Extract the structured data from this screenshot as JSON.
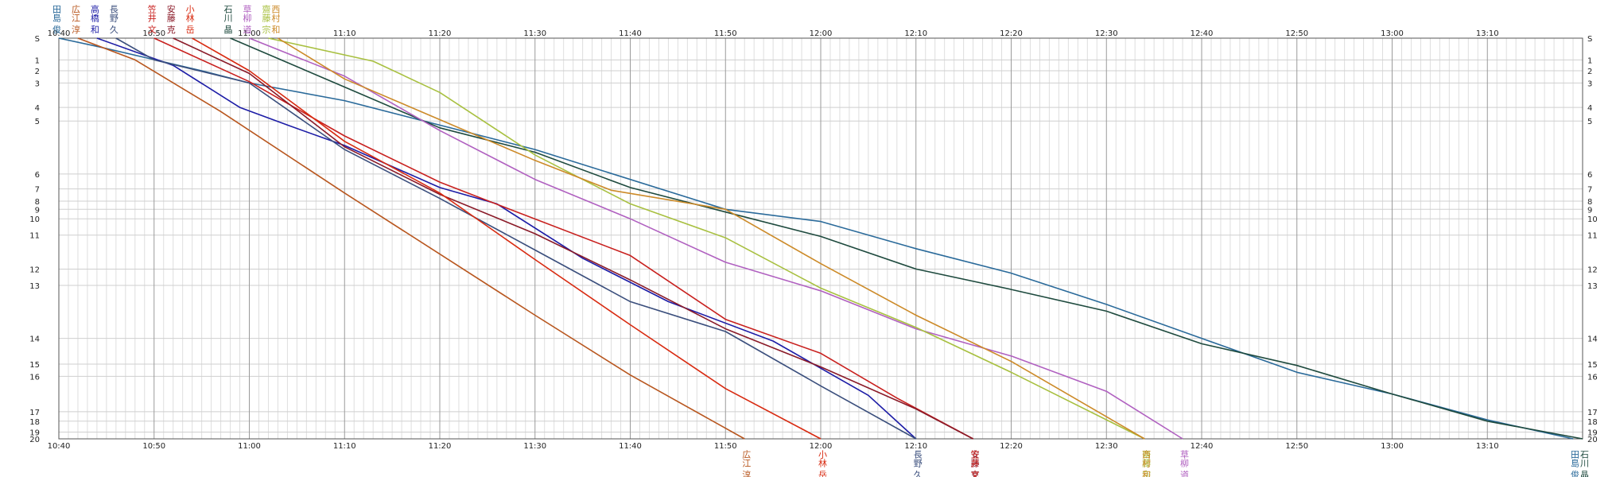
{
  "chart_data": {
    "type": "line",
    "title": "",
    "xlabel": "",
    "ylabel": "",
    "x_ticks": [
      "10:40",
      "10:50",
      "11:00",
      "11:10",
      "11:20",
      "11:30",
      "11:40",
      "11:50",
      "12:00",
      "12:10",
      "12:20",
      "12:30",
      "12:40",
      "12:50",
      "13:00",
      "13:10"
    ],
    "xlim": [
      "10:40",
      "13:20"
    ],
    "y_ticks": [
      "S",
      "1",
      "2",
      "3",
      "4",
      "5",
      "6",
      "7",
      "8",
      "9",
      "10",
      "11",
      "12",
      "13",
      "14",
      "15",
      "16",
      "17",
      "18",
      "19",
      "20"
    ],
    "y_stations": [
      {
        "label": "S",
        "dist": 0
      },
      {
        "label": "1",
        "dist": 1.6
      },
      {
        "label": "2",
        "dist": 2.4
      },
      {
        "label": "3",
        "dist": 3.3
      },
      {
        "label": "4",
        "dist": 5.1
      },
      {
        "label": "5",
        "dist": 6.1
      },
      {
        "label": "6",
        "dist": 10
      },
      {
        "label": "7",
        "dist": 11.1
      },
      {
        "label": "8",
        "dist": 12
      },
      {
        "label": "9",
        "dist": 12.6
      },
      {
        "label": "10",
        "dist": 13.3
      },
      {
        "label": "11",
        "dist": 14.5
      },
      {
        "label": "12",
        "dist": 17
      },
      {
        "label": "13",
        "dist": 18.2
      },
      {
        "label": "14",
        "dist": 22.1
      },
      {
        "label": "15",
        "dist": 24
      },
      {
        "label": "16",
        "dist": 24.9
      },
      {
        "label": "17",
        "dist": 27.5
      },
      {
        "label": "18",
        "dist": 28.2
      },
      {
        "label": "19",
        "dist": 29
      },
      {
        "label": "20",
        "dist": 29.5
      }
    ],
    "grid": true,
    "series": [
      {
        "name": "田島 俊",
        "color": "#2a6a9a",
        "start_time": "10:40",
        "finish_time": "13:19",
        "points": [
          [
            "10:40",
            0
          ],
          [
            "10:44",
            0.6
          ],
          [
            "10:55",
            2.4
          ],
          [
            "11:00",
            3.3
          ],
          [
            "11:10",
            4.6
          ],
          [
            "11:30",
            8.2
          ],
          [
            "11:50",
            12.6
          ],
          [
            "12:00",
            13.5
          ],
          [
            "12:10",
            15.5
          ],
          [
            "12:20",
            17.3
          ],
          [
            "12:30",
            19.6
          ],
          [
            "12:40",
            22.1
          ],
          [
            "12:50",
            24.6
          ],
          [
            "13:00",
            26.2
          ],
          [
            "13:10",
            28.1
          ],
          [
            "13:19",
            29.5
          ]
        ]
      },
      {
        "name": "広江 淳",
        "color": "#b8561e",
        "start_time": "10:42",
        "finish_time": "11:52",
        "points": [
          [
            "10:42",
            0
          ],
          [
            "10:48",
            1.6
          ],
          [
            "10:57",
            5.4
          ],
          [
            "11:10",
            11.4
          ],
          [
            "11:20",
            15.9
          ],
          [
            "11:30",
            20.4
          ],
          [
            "11:40",
            24.8
          ],
          [
            "11:52",
            29.5
          ]
        ]
      },
      {
        "name": "高橋 和",
        "color": "#1c1ca6",
        "start_time": "10:44",
        "finish_time": "12:10",
        "points": [
          [
            "10:44",
            0
          ],
          [
            "10:52",
            2
          ],
          [
            "10:59",
            5.1
          ],
          [
            "11:04",
            6.4
          ],
          [
            "11:10",
            7.9
          ],
          [
            "11:20",
            11
          ],
          [
            "11:26",
            12.2
          ],
          [
            "11:35",
            16.2
          ],
          [
            "11:44",
            19.4
          ],
          [
            "11:55",
            22.3
          ],
          [
            "12:05",
            26.3
          ],
          [
            "12:10",
            29.5
          ]
        ]
      },
      {
        "name": "長野 久",
        "color": "#3a4e7c",
        "start_time": "10:46",
        "finish_time": "12:10",
        "points": [
          [
            "10:46",
            0
          ],
          [
            "10:50",
            1.6
          ],
          [
            "11:00",
            3.3
          ],
          [
            "11:10",
            8.2
          ],
          [
            "11:20",
            11.8
          ],
          [
            "11:30",
            15.6
          ],
          [
            "11:40",
            19.4
          ],
          [
            "11:50",
            21.6
          ],
          [
            "12:00",
            25.6
          ],
          [
            "12:10",
            29.5
          ]
        ]
      },
      {
        "name": "笠井 文",
        "color": "#c8201e",
        "start_time": "10:50",
        "finish_time": "12:16",
        "points": [
          [
            "10:50",
            0
          ],
          [
            "11:00",
            3.2
          ],
          [
            "11:10",
            7.2
          ],
          [
            "11:20",
            10.6
          ],
          [
            "11:27",
            12.5
          ],
          [
            "11:40",
            16
          ],
          [
            "11:50",
            20.7
          ],
          [
            "12:00",
            23.2
          ],
          [
            "12:08",
            26.5
          ],
          [
            "12:16",
            29.5
          ]
        ]
      },
      {
        "name": "安藤 克",
        "color": "#8a1a28",
        "start_time": "10:52",
        "finish_time": "12:16",
        "points": [
          [
            "10:52",
            0
          ],
          [
            "11:00",
            2.6
          ],
          [
            "11:10",
            8
          ],
          [
            "11:20",
            11.5
          ],
          [
            "11:30",
            14.4
          ],
          [
            "11:40",
            17.8
          ],
          [
            "11:50",
            21.4
          ],
          [
            "12:00",
            24.2
          ],
          [
            "12:10",
            27.3
          ],
          [
            "12:16",
            29.5
          ]
        ]
      },
      {
        "name": "小林 岳",
        "color": "#d82a10",
        "start_time": "10:54",
        "finish_time": "12:00",
        "points": [
          [
            "10:54",
            0
          ],
          [
            "11:00",
            2.4
          ],
          [
            "11:10",
            7.6
          ],
          [
            "11:20",
            11.4
          ],
          [
            "11:30",
            16.3
          ],
          [
            "11:40",
            21.1
          ],
          [
            "11:50",
            25.8
          ],
          [
            "12:00",
            29.5
          ]
        ]
      },
      {
        "name": "石川 晶",
        "color": "#1e4a3e",
        "start_time": "10:58",
        "finish_time": "13:20",
        "points": [
          [
            "10:58",
            0
          ],
          [
            "11:10",
            3.6
          ],
          [
            "11:20",
            6.6
          ],
          [
            "11:30",
            8.4
          ],
          [
            "11:40",
            11
          ],
          [
            "11:50",
            12.8
          ],
          [
            "12:00",
            14.6
          ],
          [
            "12:10",
            17
          ],
          [
            "12:20",
            18.5
          ],
          [
            "12:30",
            20.1
          ],
          [
            "12:40",
            22.5
          ],
          [
            "12:50",
            24.1
          ],
          [
            "13:00",
            26.2
          ],
          [
            "13:10",
            28.2
          ],
          [
            "13:20",
            29.5
          ]
        ]
      },
      {
        "name": "草柳 道",
        "color": "#b060c0",
        "start_time": "11:00",
        "finish_time": "12:38",
        "points": [
          [
            "11:00",
            0
          ],
          [
            "11:10",
            2.8
          ],
          [
            "11:20",
            6.8
          ],
          [
            "11:30",
            10.4
          ],
          [
            "11:40",
            13.3
          ],
          [
            "11:50",
            16.5
          ],
          [
            "12:00",
            18.6
          ],
          [
            "12:10",
            21.4
          ],
          [
            "12:20",
            23.4
          ],
          [
            "12:30",
            26
          ],
          [
            "12:38",
            29.5
          ]
        ]
      },
      {
        "name": "齋藤 宗",
        "color": "#a8c040",
        "start_time": "11:02",
        "finish_time": "12:34",
        "points": [
          [
            "11:02",
            0
          ],
          [
            "11:13",
            1.7
          ],
          [
            "11:20",
            4
          ],
          [
            "11:30",
            8.6
          ],
          [
            "11:40",
            12.2
          ],
          [
            "11:50",
            14.7
          ],
          [
            "12:00",
            18.4
          ],
          [
            "12:10",
            21.3
          ],
          [
            "12:20",
            24.6
          ],
          [
            "12:34",
            29.5
          ]
        ]
      },
      {
        "name": "西村 和",
        "color": "#cc8a28",
        "start_time": "11:03",
        "finish_time": "12:34",
        "points": [
          [
            "11:03",
            0
          ],
          [
            "11:10",
            3
          ],
          [
            "11:20",
            6
          ],
          [
            "11:30",
            9
          ],
          [
            "11:38",
            11.2
          ],
          [
            "11:50",
            12.6
          ],
          [
            "12:00",
            16.6
          ],
          [
            "12:10",
            20.4
          ],
          [
            "12:20",
            23.8
          ],
          [
            "12:34",
            29.5
          ]
        ]
      }
    ],
    "top_labels": [
      {
        "name": "田島 俊",
        "time": "10:40"
      },
      {
        "name": "広江 淳",
        "time": "10:42"
      },
      {
        "name": "高橋 和",
        "time": "10:44"
      },
      {
        "name": "長野 久",
        "time": "10:46"
      },
      {
        "name": "笠井 文",
        "time": "10:50"
      },
      {
        "name": "安藤 克",
        "time": "10:52"
      },
      {
        "name": "小林 岳",
        "time": "10:54"
      },
      {
        "name": "石川 晶",
        "time": "10:58"
      },
      {
        "name": "草柳 道",
        "time": "11:00"
      },
      {
        "name": "齋藤 宗",
        "time": "11:02"
      },
      {
        "name": "西村 和",
        "time": "11:03"
      }
    ],
    "bottom_labels": [
      {
        "name": "広江 淳",
        "time": "11:52"
      },
      {
        "name": "小林 岳",
        "time": "12:00"
      },
      {
        "name": "長野 久",
        "time": "12:10"
      },
      {
        "name": "安藤 克",
        "time": "12:16"
      },
      {
        "name": "笠井 文",
        "time": "12:16"
      },
      {
        "name": "齋藤 宗",
        "time": "12:34"
      },
      {
        "name": "西村 和",
        "time": "12:34"
      },
      {
        "name": "草柳 道",
        "time": "12:38"
      },
      {
        "name": "田島 俊",
        "time": "13:19"
      },
      {
        "name": "石川 晶",
        "time": "13:20"
      }
    ]
  }
}
